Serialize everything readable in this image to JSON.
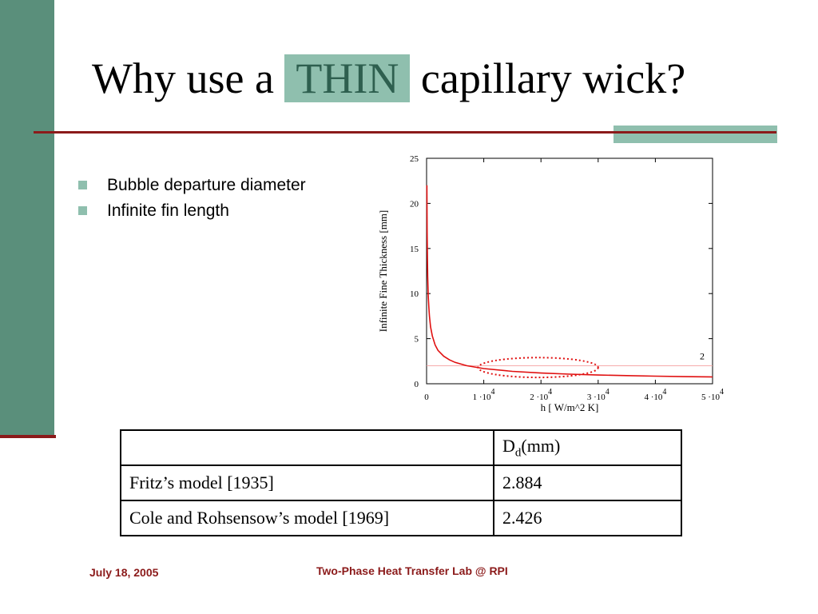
{
  "slide": {
    "title_pre": "Why use a",
    "title_highlight": "THIN",
    "title_post": "capillary wick?"
  },
  "bullets": [
    "Bubble departure diameter",
    "Infinite fin length"
  ],
  "chart_data": {
    "type": "line",
    "xlabel": "h [ W/m^2 K]",
    "ylabel": "Infinite Fine Thickness [mm]",
    "xlim": [
      0,
      50000
    ],
    "ylim": [
      0,
      25
    ],
    "xticks": [
      {
        "value": 0,
        "label": "0",
        "exp": ""
      },
      {
        "value": 10000,
        "label": "1 ·10",
        "exp": "4"
      },
      {
        "value": 20000,
        "label": "2 ·10",
        "exp": "4"
      },
      {
        "value": 30000,
        "label": "3 ·10",
        "exp": "4"
      },
      {
        "value": 40000,
        "label": "4 ·10",
        "exp": "4"
      },
      {
        "value": 50000,
        "label": "5 ·10",
        "exp": "4"
      }
    ],
    "yticks": [
      0,
      5,
      10,
      15,
      20,
      25
    ],
    "series": [
      {
        "color": "#e01010",
        "x": [
          50,
          100,
          150,
          200,
          300,
          400,
          500,
          700,
          1000,
          1500,
          2000,
          3000,
          4000,
          5000,
          7000,
          10000,
          15000,
          20000,
          25000,
          30000,
          35000,
          40000,
          45000,
          50000
        ],
        "y": [
          22.0,
          16.8,
          13.8,
          11.9,
          9.7,
          8.4,
          7.5,
          6.3,
          5.3,
          4.3,
          3.7,
          3.05,
          2.65,
          2.37,
          2.0,
          1.68,
          1.37,
          1.19,
          1.06,
          0.97,
          0.9,
          0.84,
          0.79,
          0.75
        ]
      }
    ],
    "reference_line": {
      "y": 2,
      "label": "2",
      "color": "#f4a0a0"
    },
    "annotation": {
      "type": "dotted-ellipse",
      "cx": 19500,
      "cy": 1.8,
      "rx": 10500,
      "ry": 1.1,
      "color": "#e01010"
    }
  },
  "table": {
    "header_col2_main": "D",
    "header_col2_sub": "d",
    "header_col2_unit": "(mm)",
    "rows": [
      {
        "model": "Fritz’s model [1935]",
        "value": "2.884"
      },
      {
        "model": "Cole and Rohsensow’s model [1969]",
        "value": "2.426"
      }
    ]
  },
  "footer": {
    "date": "July 18, 2005",
    "center": "Two-Phase Heat Transfer Lab @ RPI"
  }
}
